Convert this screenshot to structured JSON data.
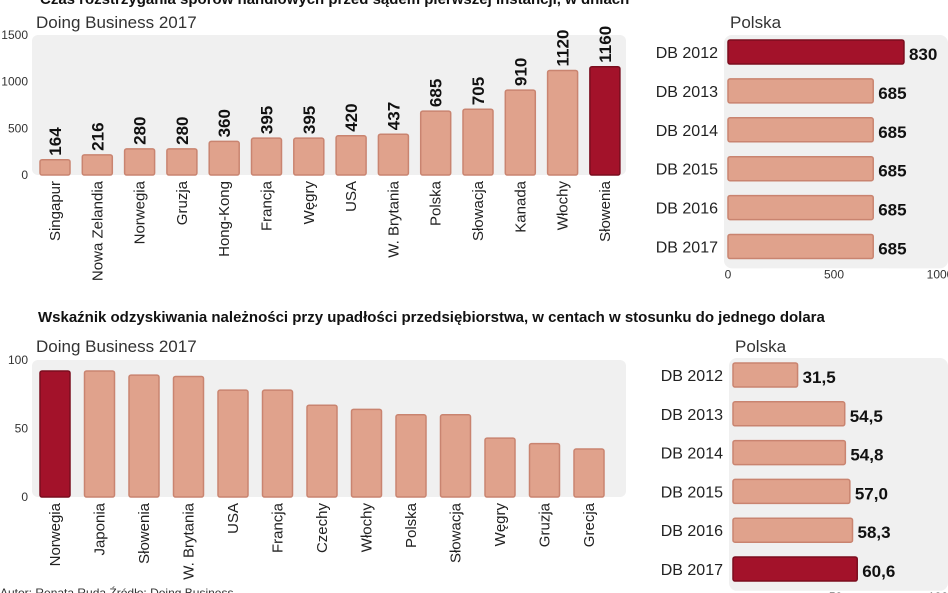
{
  "colors": {
    "bar": "#e0a28c",
    "bar_stroke": "#c98470",
    "highlight": "#a3122a",
    "panel": "#f0f0f0"
  },
  "footer": "Autor: Renata Ruda   Źródło: Doing Business",
  "chart_data": [
    {
      "type": "bar",
      "title": "Czas rozstrzygania sporów handlowych przed sądem pierwszej instancji, w dniach",
      "subtitle": "Doing Business 2017",
      "categories": [
        "Singapur",
        "Nowa Zelandia",
        "Norwegia",
        "Gruzja",
        "Hong-Kong",
        "Francja",
        "Węgry",
        "USA",
        "W. Brytania",
        "Polska",
        "Słowacja",
        "Kanada",
        "Włochy",
        "Słowenia"
      ],
      "values": [
        164,
        216,
        280,
        280,
        360,
        395,
        395,
        420,
        437,
        685,
        705,
        910,
        1120,
        1160
      ],
      "highlight": "Słowenia",
      "ylim": [
        0,
        1500
      ],
      "yticks": [
        "0",
        "500",
        "1000",
        "1500"
      ],
      "show_values": true
    },
    {
      "type": "bar",
      "orientation": "horizontal",
      "subtitle": "Polska",
      "categories": [
        "DB 2012",
        "DB 2013",
        "DB 2014",
        "DB 2015",
        "DB 2016",
        "DB 2017"
      ],
      "values": [
        830,
        685,
        685,
        685,
        685,
        685
      ],
      "labels": [
        "830",
        "685",
        "685",
        "685",
        "685",
        "685"
      ],
      "highlight": "DB 2012",
      "xlim": [
        0,
        1000
      ],
      "xticks": [
        "0",
        "500",
        "1000"
      ]
    },
    {
      "type": "bar",
      "title": "Wskaźnik odzyskiwania należności przy upadłości przedsiębiorstwa, w centach w stosunku do jednego dolara",
      "subtitle": "Doing Business 2017",
      "categories": [
        "Norwegia",
        "Japonia",
        "Słowenia",
        "W. Brytania",
        "USA",
        "Francja",
        "Czechy",
        "Włochy",
        "Polska",
        "Słowacja",
        "Węgry",
        "Gruzja",
        "Grecja"
      ],
      "values": [
        92,
        92,
        89,
        88,
        78,
        78,
        67,
        64,
        60,
        60,
        43,
        39,
        35
      ],
      "highlight": "Norwegia",
      "ylim": [
        0,
        100
      ],
      "yticks": [
        "0",
        "50",
        "100"
      ]
    },
    {
      "type": "bar",
      "orientation": "horizontal",
      "subtitle": "Polska",
      "categories": [
        "DB 2012",
        "DB 2013",
        "DB 2014",
        "DB 2015",
        "DB 2016",
        "DB 2017"
      ],
      "values": [
        31.5,
        54.5,
        54.8,
        57.0,
        58.3,
        60.6
      ],
      "labels": [
        "31,5",
        "54,5",
        "54,8",
        "57,0",
        "58,3",
        "60,6"
      ],
      "highlight": "DB 2017",
      "xlim": [
        0,
        100
      ],
      "xticks": [
        "50",
        "100"
      ]
    }
  ]
}
